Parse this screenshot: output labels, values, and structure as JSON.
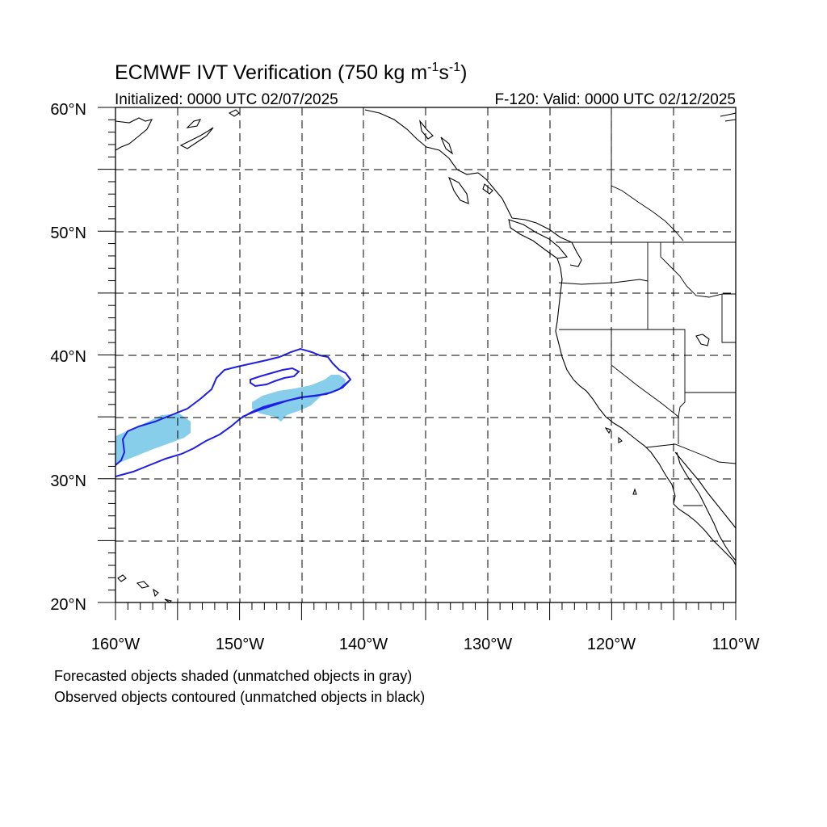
{
  "title": {
    "main": "ECMWF IVT Verification (750 kg m",
    "sup1": "-1",
    "mid": "s",
    "sup2": "-1",
    "close": ")"
  },
  "subtitle": {
    "left": "Initialized: 0000 UTC 02/07/2025",
    "right": "F-120: Valid: 0000 UTC 02/12/2025"
  },
  "map": {
    "extent": {
      "lon": [
        -160,
        -110
      ],
      "lat": [
        20,
        60
      ]
    },
    "grid_style": "dashed",
    "lat_labels": [
      "60°N",
      "50°N",
      "40°N",
      "30°N",
      "20°N"
    ],
    "lon_labels": [
      "160°W",
      "150°W",
      "140°W",
      "130°W",
      "120°W",
      "110°W"
    ],
    "forecast_color": "#87ceeb",
    "observed_color": "#1e1ee6"
  },
  "legend_notes": [
    "Forecasted objects shaded (unmatched objects in gray)",
    "Observed objects contoured (unmatched objects in black)"
  ]
}
